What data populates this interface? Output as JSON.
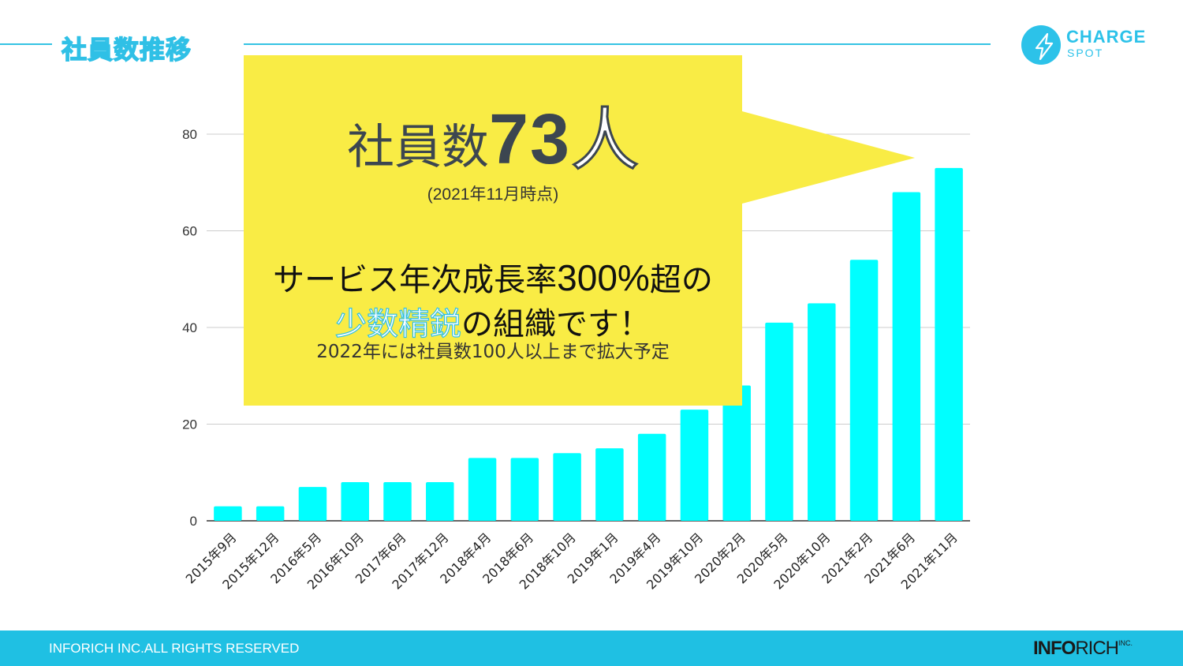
{
  "header": {
    "title": "社員数推移"
  },
  "logo": {
    "line1": "CHARGE",
    "line2": "SPOT",
    "icon": "lightning-bolt-icon",
    "color": "#2cc2e9"
  },
  "callout": {
    "headline_prefix": "社員数",
    "headline_number": "73",
    "headline_suffix": "人",
    "as_of": "(2021年11月時点)",
    "message_line1_a": "サービス年次成長率",
    "message_line1_pct": "300%",
    "message_line1_b": "超の",
    "message_line2_highlight": "少数精鋭",
    "message_line2_rest": "の組織です！",
    "message_line3": "2022年には社員数100人以上まで拡大予定",
    "background_color": "#f9ec45"
  },
  "footer": {
    "copyright": "INFORICH INC.ALL RIGHTS RESERVED",
    "brand_bold": "INFO",
    "brand_rest": "RICH",
    "brand_inc": "INC.",
    "background_color": "#1fc0e3"
  },
  "chart_data": {
    "type": "bar",
    "categories": [
      "2015年9月",
      "2015年12月",
      "2016年5月",
      "2016年10月",
      "2017年6月",
      "2017年12月",
      "2018年4月",
      "2018年6月",
      "2018年10月",
      "2019年1月",
      "2019年4月",
      "2019年10月",
      "2020年2月",
      "2020年5月",
      "2020年10月",
      "2021年2月",
      "2021年6月",
      "2021年11月"
    ],
    "values": [
      3,
      3,
      7,
      8,
      8,
      8,
      13,
      13,
      14,
      15,
      18,
      23,
      28,
      41,
      45,
      54,
      68,
      73
    ],
    "ylim": [
      0,
      80
    ],
    "yticks": [
      0,
      20,
      40,
      60,
      80
    ],
    "grid": true,
    "bar_color": "#00ffff"
  }
}
